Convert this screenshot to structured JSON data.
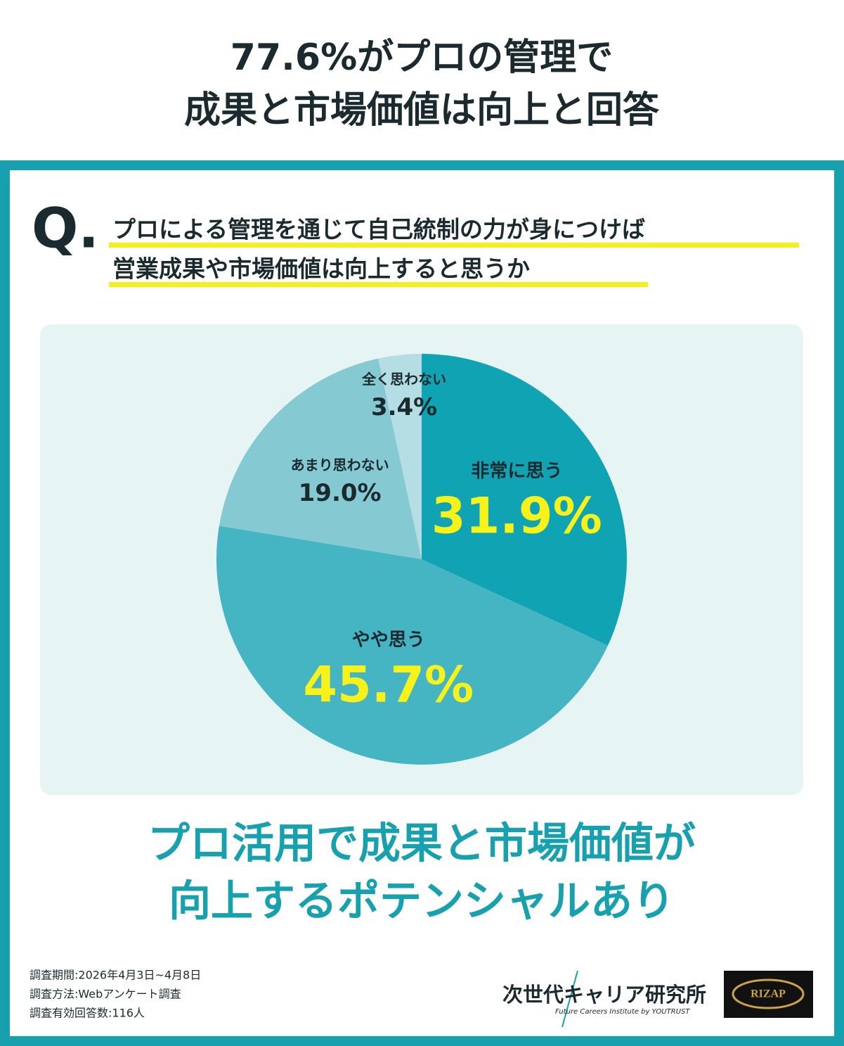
{
  "title": [
    "77.6%がプロの管理で",
    "成果と市場価値は向上と回答"
  ],
  "chart_data": {
    "type": "pie",
    "question_mark": "Q.",
    "question": [
      "プロによる管理を通じて自己統制の力が身につけば",
      "営業成果や市場価値は向上すると思うか"
    ],
    "categories": [
      "非常に思う",
      "やや思う",
      "あまり思わない",
      "全く思わない"
    ],
    "values": [
      31.9,
      45.7,
      19.0,
      3.4
    ],
    "value_labels": [
      "31.9%",
      "45.7%",
      "19.0%",
      "3.4%"
    ],
    "colors": [
      "#0fa3b3",
      "#45b4c3",
      "#85c9d3",
      "#b4dee4"
    ]
  },
  "headline": [
    "プロ活用で成果と市場価値が",
    "向上するポテンシャルあり"
  ],
  "notes": [
    "調査期間:2026年4月3日~4月8日",
    "調査方法:Webアンケート調査",
    "調査有効回答数:116人"
  ],
  "logos": {
    "institute": "次世代キャリア研究所",
    "institute_sub": "Future Careers Institute by YOUTRUST",
    "rizap": "RIZAP"
  }
}
